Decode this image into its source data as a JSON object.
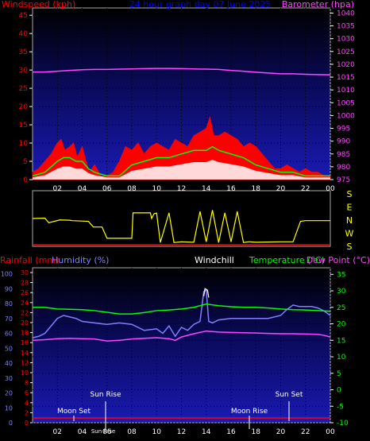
{
  "header": {
    "windspeed_label": "Windspeed (kph)",
    "graph_title": "24 hour graph day  07 June 2025",
    "barometer_label": "Barometer (hpa)"
  },
  "direction_labels": [
    "S",
    "E",
    "N",
    "W",
    "S"
  ],
  "bottom_header": {
    "rainfall_label": "Rainfall (mm)",
    "humidity_label": "Humidity (%)",
    "windchill_label": "Windchill",
    "temperature_label": "Temperature (°C)",
    "dewpoint_label": "Dew Point (°C)"
  },
  "astro_labels": {
    "moon_set": "Moon Set",
    "sun_rise": "Sun Rise",
    "sun_rise_short": "Sun Rise",
    "moon_rise": "Moon Rise",
    "sun_set": "Sun Set"
  },
  "colors": {
    "windspeed": "#ff0000",
    "gust": "#00ff00",
    "barometer": "#ff44ff",
    "direction": "#ffff00",
    "humidity": "#8080ff",
    "temperature": "#00ff00",
    "dewpoint": "#ff44ff",
    "windchill": "#ffffff",
    "rain": "#ff0000"
  },
  "chart_data": [
    {
      "type": "area",
      "x_ticks": [
        "02",
        "04",
        "06",
        "08",
        "10",
        "12",
        "14",
        "16",
        "18",
        "20",
        "22",
        "00"
      ],
      "y_left_ticks": [
        "0",
        "5",
        "10",
        "15",
        "20",
        "25",
        "30",
        "35",
        "40",
        "45"
      ],
      "y_right_ticks": [
        "975",
        "980",
        "985",
        "990",
        "995",
        "1000",
        "1005",
        "1010",
        "1015",
        "1020",
        "1025",
        "1030",
        "1035",
        "1040"
      ],
      "ylim_left": [
        0,
        47
      ],
      "ylim_right": [
        975,
        1042
      ],
      "x_range_hours": [
        0,
        24
      ],
      "series": [
        {
          "name": "Windspeed (kph)",
          "x": [
            0,
            0.5,
            1,
            1.5,
            2,
            2.3,
            2.6,
            3,
            3.3,
            3.6,
            4,
            4.3,
            4.6,
            5,
            5.5,
            6,
            6.5,
            7,
            7.5,
            8,
            8.5,
            9,
            9.5,
            10,
            10.5,
            11,
            11.5,
            12,
            12.5,
            13,
            13.5,
            14,
            14.3,
            14.6,
            15,
            15.5,
            16,
            16.5,
            17,
            17.5,
            18,
            18.5,
            19,
            19.5,
            20,
            20.5,
            21,
            21.5,
            22,
            22.5,
            23,
            23.5,
            24
          ],
          "y": [
            2,
            3,
            5,
            7,
            10,
            11,
            8,
            9,
            10,
            6,
            9,
            5,
            2,
            4,
            1,
            1,
            2,
            5,
            9,
            8,
            10,
            7,
            9,
            10,
            9,
            8,
            11,
            10,
            9,
            12,
            13,
            14,
            17,
            12,
            12,
            13,
            12,
            11,
            9,
            10,
            9,
            7,
            5,
            3,
            3,
            4,
            3,
            2,
            3,
            2,
            2,
            1,
            1
          ]
        },
        {
          "name": "Gust",
          "x": [
            0,
            1,
            2,
            2.5,
            3,
            3.5,
            4,
            4.5,
            5,
            6,
            7,
            8,
            9,
            10,
            11,
            12,
            13,
            14,
            14.5,
            15,
            16,
            17,
            18,
            19,
            20,
            21,
            22,
            23,
            24
          ],
          "y": [
            1,
            2,
            5,
            6,
            6,
            5,
            5,
            3,
            2,
            1,
            1,
            4,
            5,
            6,
            6,
            7,
            8,
            8,
            9,
            8,
            7,
            6,
            4,
            3,
            2,
            2,
            1,
            1,
            1
          ]
        },
        {
          "name": "Barometer (hpa)",
          "x": [
            0,
            1,
            2,
            3,
            4,
            5,
            6,
            7,
            8,
            9,
            10,
            11,
            12,
            13,
            14,
            15,
            16,
            17,
            18,
            19,
            20,
            21,
            22,
            23,
            24
          ],
          "y": [
            1017,
            1017,
            1017.3,
            1017.6,
            1017.9,
            1018,
            1018,
            1018.1,
            1018.2,
            1018.3,
            1018.4,
            1018.4,
            1018.3,
            1018.2,
            1018.1,
            1018,
            1017.6,
            1017.3,
            1016.9,
            1016.6,
            1016.3,
            1016.3,
            1016.1,
            1016.0,
            1015.9
          ]
        }
      ]
    },
    {
      "type": "line",
      "title": "Wind direction",
      "y_labels": [
        "S",
        "E",
        "N",
        "W",
        "S"
      ],
      "y_values_deg": [
        0,
        90,
        180,
        270,
        360
      ],
      "series": [
        {
          "name": "Direction",
          "x": [
            0,
            1,
            1.3,
            2.2,
            3,
            3.2,
            4.5,
            4.9,
            5.6,
            6.0,
            7.5,
            8.0,
            8.1,
            9.5,
            9.6,
            9.8,
            10.0,
            10.3,
            11.0,
            11.4,
            12,
            13,
            13.5,
            14,
            14.5,
            15,
            15.5,
            16,
            16.5,
            17,
            17.4,
            17.5,
            18,
            20,
            21,
            21.6,
            22,
            24
          ],
          "y": [
            180,
            183,
            150,
            170,
            168,
            165,
            160,
            120,
            120,
            40,
            40,
            40,
            220,
            220,
            180,
            215,
            218,
            10,
            220,
            10,
            15,
            12,
            230,
            15,
            240,
            10,
            220,
            15,
            230,
            10,
            15,
            15,
            12,
            15,
            15,
            160,
            165,
            165
          ]
        }
      ]
    },
    {
      "type": "line",
      "x_ticks": [
        "02",
        "04",
        "06",
        "08",
        "10",
        "12",
        "14",
        "16",
        "18",
        "20",
        "22",
        "00"
      ],
      "y_humidity_ticks": [
        "0",
        "10",
        "20",
        "30",
        "40",
        "50",
        "60",
        "70",
        "80",
        "90",
        "100"
      ],
      "y_rain_ticks": [
        "0",
        "2",
        "4",
        "6",
        "8",
        "10",
        "12",
        "14",
        "16",
        "18",
        "20",
        "22",
        "24",
        "26",
        "28",
        "30"
      ],
      "y_temp_ticks": [
        "-10",
        "-5",
        "0",
        "5",
        "10",
        "15",
        "20",
        "25",
        "30",
        "35"
      ],
      "ylim_temp": [
        -10,
        37
      ],
      "ylim_humidity": [
        0,
        104
      ],
      "series": [
        {
          "name": "Humidity (%)",
          "x": [
            0,
            0.5,
            1,
            1.5,
            2,
            2.5,
            3,
            3.5,
            4,
            5,
            6,
            7,
            8,
            9,
            10,
            10.5,
            11,
            11.5,
            12,
            12.5,
            13,
            13.5,
            13.8,
            14,
            14.2,
            14.5,
            15,
            16,
            17,
            18,
            19,
            20,
            20.5,
            21,
            21.5,
            22,
            22.5,
            23,
            23.5,
            24
          ],
          "y": [
            57,
            58,
            60,
            65,
            70,
            72,
            71,
            70,
            68,
            67,
            66,
            67,
            66,
            62,
            63,
            60,
            65,
            58,
            64,
            62,
            66,
            68,
            88,
            89,
            68,
            67,
            69,
            70,
            70,
            70,
            70,
            72,
            76,
            79,
            78,
            78,
            78,
            77,
            75,
            72
          ]
        },
        {
          "name": "Temperature (°C)",
          "x": [
            0,
            1,
            2,
            3,
            4,
            5,
            6,
            7,
            8,
            9,
            10,
            11,
            12,
            13,
            14,
            15,
            16,
            17,
            18,
            19,
            20,
            21,
            22,
            23,
            24
          ],
          "y": [
            25,
            25,
            24.5,
            24.4,
            24.3,
            24,
            23.5,
            23,
            23,
            23.4,
            24,
            24.2,
            24.5,
            25,
            26,
            25.5,
            25.2,
            25,
            25,
            24.8,
            24.5,
            24.3,
            24.2,
            24,
            23.8
          ]
        },
        {
          "name": "Dew Point (°C)",
          "x": [
            0,
            1,
            2,
            3,
            4,
            5,
            6,
            7,
            8,
            9,
            10,
            11,
            11.5,
            12,
            13,
            14,
            15,
            16,
            17,
            18,
            19,
            20,
            21,
            22,
            23,
            23.5,
            24
          ],
          "y": [
            15,
            15.2,
            15.5,
            15.6,
            15.5,
            15.4,
            14.8,
            15,
            15.4,
            15.6,
            15.8,
            15.5,
            15.0,
            16,
            17,
            17.8,
            17.5,
            17.4,
            17.3,
            17.2,
            17.1,
            17,
            17,
            16.9,
            16.8,
            16.5,
            16.0
          ]
        },
        {
          "name": "Rainfall (mm)",
          "x": [
            0,
            24
          ],
          "y": [
            0,
            0
          ]
        }
      ]
    }
  ]
}
